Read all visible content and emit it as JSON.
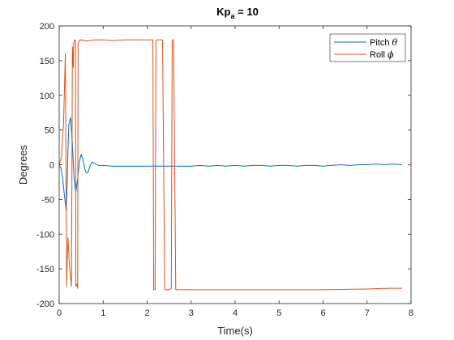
{
  "chart_data": {
    "type": "line",
    "title": {
      "main": "Kp",
      "subscript": "a",
      "rest": " = 10"
    },
    "xlabel": "Time(s)",
    "ylabel": "Degrees",
    "xlim": [
      0,
      8
    ],
    "ylim": [
      -200,
      200
    ],
    "xticks": [
      0,
      1,
      2,
      3,
      4,
      5,
      6,
      7,
      8
    ],
    "yticks": [
      -200,
      -150,
      -100,
      -50,
      0,
      50,
      100,
      150,
      200
    ],
    "grid": false,
    "legend_position": "top-right",
    "series": [
      {
        "name": "Pitch",
        "symbol": "θ",
        "color": "#0072BD",
        "x": [
          0,
          0.04,
          0.08,
          0.12,
          0.16,
          0.18,
          0.2,
          0.22,
          0.26,
          0.3,
          0.34,
          0.38,
          0.42,
          0.46,
          0.5,
          0.55,
          0.6,
          0.65,
          0.7,
          0.75,
          0.8,
          0.9,
          1.0,
          1.2,
          1.5,
          2.0,
          2.5,
          3.0,
          3.2,
          3.4,
          3.6,
          3.8,
          4.0,
          4.2,
          4.4,
          4.6,
          4.8,
          5.0,
          5.2,
          5.4,
          5.6,
          5.8,
          6.0,
          6.2,
          6.4,
          6.6,
          6.8,
          7.0,
          7.2,
          7.4,
          7.6,
          7.8
        ],
        "y": [
          0,
          -5,
          -20,
          -45,
          -66,
          -30,
          20,
          58,
          68,
          30,
          -20,
          -39,
          -20,
          5,
          15,
          5,
          -10,
          -12,
          -2,
          4,
          2,
          -1,
          -1,
          -2,
          -2,
          -2,
          -2,
          -2,
          -1,
          -2,
          -1,
          -2,
          -1,
          -2,
          -1,
          -1,
          -2,
          -1,
          -1,
          -2,
          -1,
          -1,
          -2,
          -1,
          0,
          -1,
          0,
          0,
          1,
          0,
          1,
          0
        ]
      },
      {
        "name": "Roll",
        "symbol": "ϕ",
        "color": "#D95319",
        "x": [
          0,
          0.05,
          0.1,
          0.14,
          0.17,
          0.2,
          0.24,
          0.28,
          0.3,
          0.32,
          0.33,
          0.35,
          0.37,
          0.38,
          0.4,
          0.42,
          0.43,
          0.45,
          0.47,
          0.48,
          0.5,
          0.52,
          0.55,
          0.6,
          0.7,
          0.8,
          1.0,
          1.2,
          1.5,
          2.0,
          2.1,
          2.13,
          2.15,
          2.18,
          2.2,
          2.23,
          2.3,
          2.33,
          2.35,
          2.4,
          2.5,
          2.55,
          2.57,
          2.6,
          2.65,
          3.0,
          4.0,
          5.0,
          6.0,
          7.0,
          7.5,
          7.8
        ],
        "y": [
          0,
          10,
          60,
          160,
          -175,
          -105,
          -150,
          -175,
          170,
          140,
          175,
          180,
          178,
          -175,
          -172,
          -178,
          175,
          178,
          179,
          180,
          180,
          179,
          180,
          178,
          179,
          180,
          180,
          179,
          180,
          180,
          180,
          180,
          -180,
          -180,
          180,
          180,
          180,
          180,
          180,
          -180,
          -180,
          -178,
          180,
          180,
          -180,
          -180,
          -180,
          -180,
          -180,
          -179,
          -178,
          -178
        ]
      }
    ]
  }
}
